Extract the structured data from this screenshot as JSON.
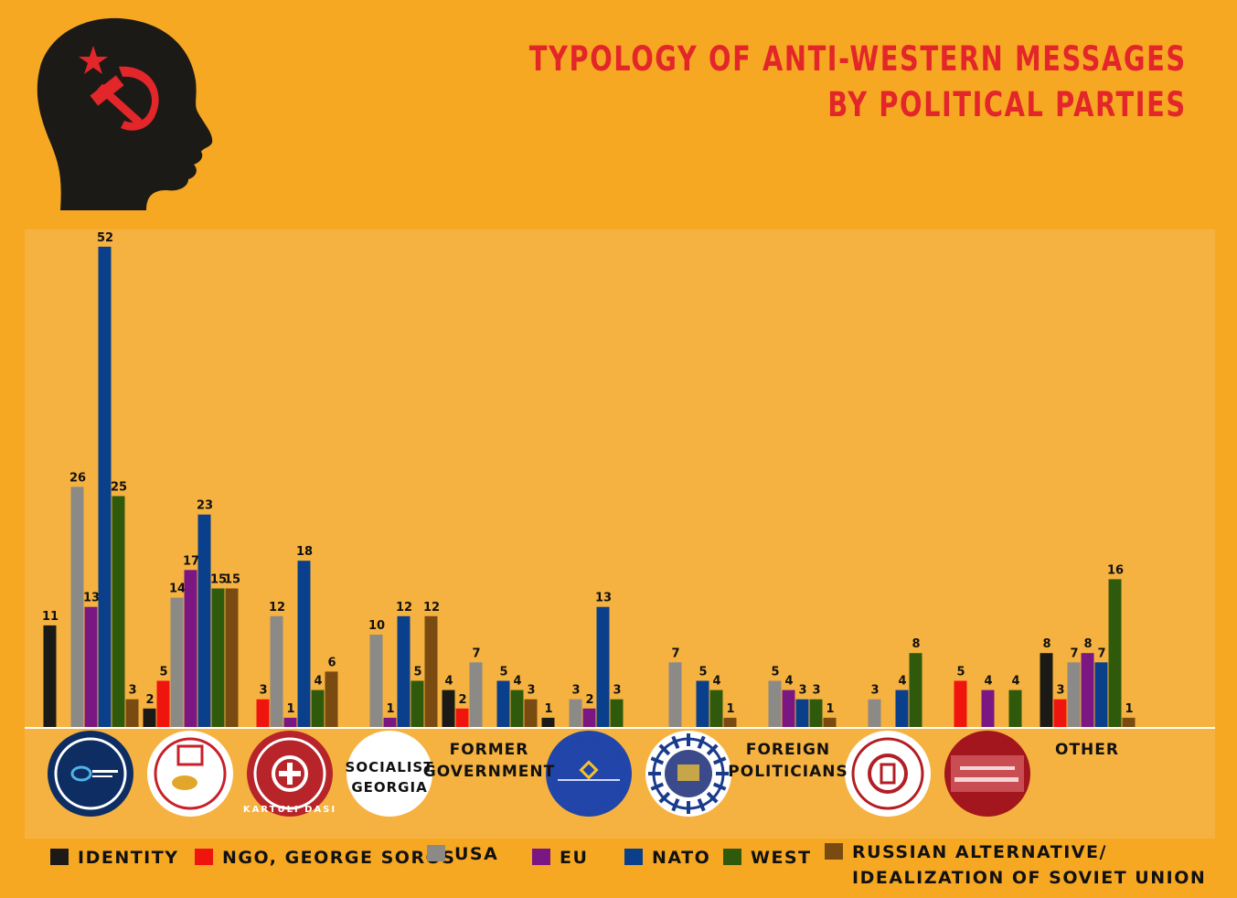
{
  "title": {
    "line1": "TYPOLOGY OF ANTI-WESTERN MESSAGES",
    "line2": "BY  POLITICAL PARTIES"
  },
  "colors": {
    "background": "#f7a823",
    "panel": "#f5b240",
    "title": "#e3262a",
    "identity": "#1c1a17",
    "ngo": "#f0140e",
    "usa": "#8c8a87",
    "eu": "#7a1782",
    "nato": "#0a3f8b",
    "west": "#2f5a0c",
    "russian": "#7a4b10"
  },
  "chart_data": {
    "type": "bar",
    "title": "TYPOLOGY OF ANTI-WESTERN MESSAGES BY POLITICAL PARTIES",
    "xlabel": "",
    "ylabel": "",
    "ylim": [
      0,
      52
    ],
    "categories": [
      {
        "label": "",
        "logo": "party-logo-1"
      },
      {
        "label": "",
        "logo": "party-logo-2"
      },
      {
        "label": "",
        "logo": "kartuli-dasi-logo",
        "logo_text": "KARTULI DASI"
      },
      {
        "label": "",
        "logo": "socialist-georgia-logo",
        "logo_text": "SOCIALIST\nGEORGIA"
      },
      {
        "label": "FORMER\nGOVERNMENT",
        "logo": ""
      },
      {
        "label": "",
        "logo": "party-logo-6"
      },
      {
        "label": "",
        "logo": "party-logo-7"
      },
      {
        "label": "FOREIGN\nPOLITICIANS",
        "logo": ""
      },
      {
        "label": "",
        "logo": "party-logo-9"
      },
      {
        "label": "",
        "logo": "party-logo-10"
      },
      {
        "label": "OTHER",
        "logo": ""
      }
    ],
    "series": [
      {
        "name": "IDENTITY",
        "color_key": "identity",
        "values": [
          11,
          2,
          null,
          null,
          4,
          1,
          null,
          null,
          null,
          null,
          8
        ]
      },
      {
        "name": "NGO, GEORGE SOROS",
        "color_key": "ngo",
        "values": [
          null,
          5,
          3,
          null,
          2,
          null,
          null,
          null,
          null,
          5,
          3
        ]
      },
      {
        "name": "USA",
        "color_key": "usa",
        "values": [
          26,
          14,
          12,
          10,
          7,
          3,
          7,
          5,
          3,
          null,
          7
        ]
      },
      {
        "name": "EU",
        "color_key": "eu",
        "values": [
          13,
          17,
          1,
          1,
          null,
          2,
          null,
          4,
          null,
          4,
          8
        ]
      },
      {
        "name": "NATO",
        "color_key": "nato",
        "values": [
          52,
          23,
          18,
          12,
          5,
          13,
          5,
          3,
          4,
          null,
          7
        ]
      },
      {
        "name": "WEST",
        "color_key": "west",
        "values": [
          25,
          15,
          4,
          5,
          4,
          3,
          4,
          3,
          8,
          4,
          16
        ]
      },
      {
        "name": "RUSSIAN ALTERNATIVE/\nIDEALIZATION OF SOVIET UNION",
        "color_key": "russian",
        "values": [
          3,
          15,
          6,
          12,
          3,
          null,
          1,
          1,
          null,
          null,
          1
        ]
      }
    ],
    "legend": {
      "placement": "bottom"
    }
  }
}
